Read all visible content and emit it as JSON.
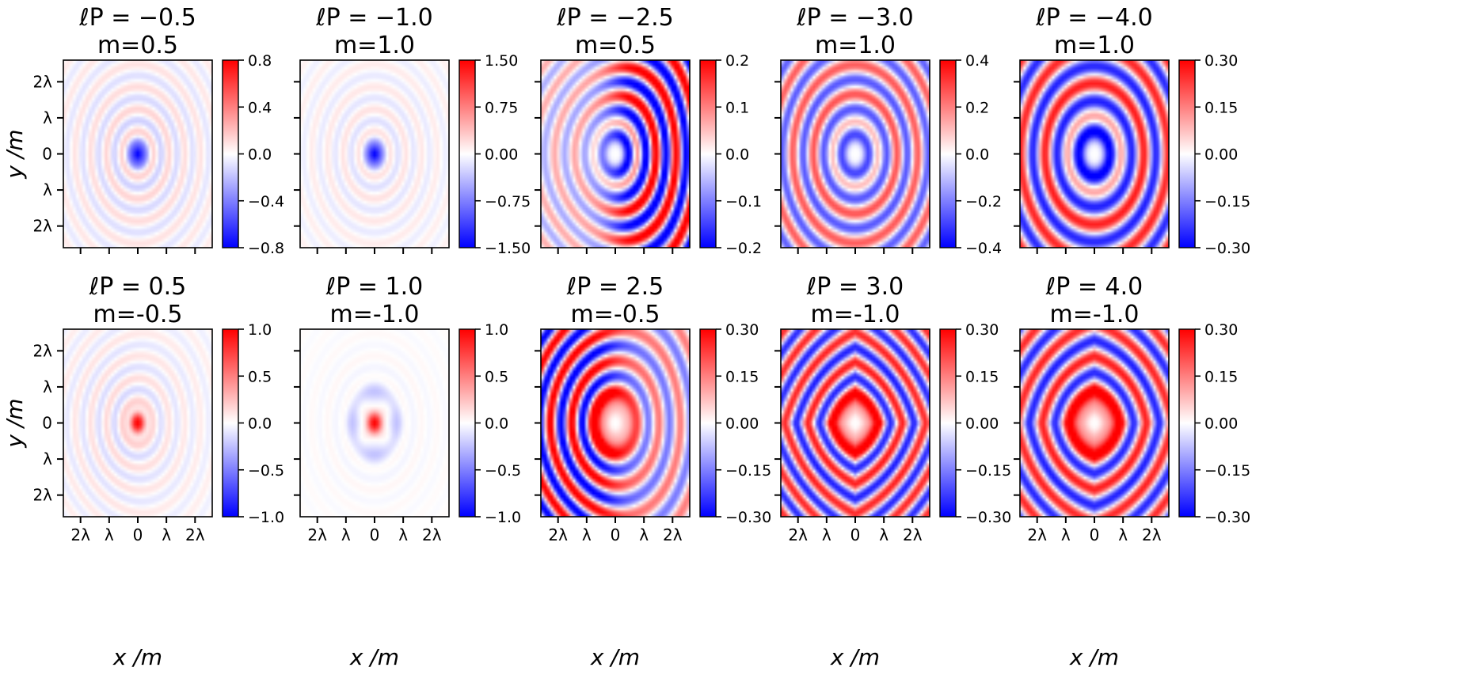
{
  "chart_data": [
    {
      "type": "heatmap",
      "title_line1": "ℓP = −0.5",
      "title_line2": "m=0.5",
      "colorbar_ticks": [
        "0.8",
        "0.4",
        "0.0",
        "−0.4",
        "−0.8"
      ],
      "vmin": -0.8,
      "vmax": 0.8,
      "pattern": "concentric_rings",
      "center_value": -0.8,
      "ring_amplitude": 0.2,
      "ring_period_lambda": 0.55,
      "aniso": 1.0,
      "asym": 0.0,
      "lobes": 0,
      "hole": 0
    },
    {
      "type": "heatmap",
      "title_line1": "ℓP = −1.0",
      "title_line2": "m=1.0",
      "colorbar_ticks": [
        "1.50",
        "0.75",
        "0.00",
        "−0.75",
        "−1.50"
      ],
      "vmin": -1.5,
      "vmax": 1.5,
      "pattern": "concentric_rings",
      "center_value": -1.5,
      "ring_amplitude": 0.25,
      "ring_period_lambda": 0.55,
      "aniso": 1.0,
      "asym": 0.0,
      "lobes": 0,
      "hole": 0
    },
    {
      "type": "heatmap",
      "title_line1": "ℓP = −2.5",
      "title_line2": "m=0.5",
      "colorbar_ticks": [
        "0.2",
        "0.1",
        "0.0",
        "−0.1",
        "−0.2"
      ],
      "vmin": -0.2,
      "vmax": 0.2,
      "pattern": "offset_rings",
      "center_value": -0.18,
      "ring_amplitude": 0.17,
      "ring_period_lambda": 0.7,
      "aniso": 1.0,
      "asym": 0.55,
      "lobes": 0,
      "hole": 1
    },
    {
      "type": "heatmap",
      "title_line1": "ℓP = −3.0",
      "title_line2": "m=1.0",
      "colorbar_ticks": [
        "0.4",
        "0.2",
        "0.0",
        "−0.2",
        "−0.4"
      ],
      "vmin": -0.4,
      "vmax": 0.4,
      "pattern": "concentric_rings",
      "center_value": -0.4,
      "ring_amplitude": 0.3,
      "ring_period_lambda": 0.72,
      "aniso": 1.0,
      "asym": 0.0,
      "lobes": 0,
      "hole": 1
    },
    {
      "type": "heatmap",
      "title_line1": "ℓP = −4.0",
      "title_line2": "m=1.0",
      "colorbar_ticks": [
        "0.30",
        "0.15",
        "0.00",
        "−0.15",
        "−0.30"
      ],
      "vmin": -0.3,
      "vmax": 0.3,
      "pattern": "concentric_rings",
      "center_value": -0.3,
      "ring_amplitude": 0.3,
      "ring_period_lambda": 0.85,
      "aniso": 1.0,
      "asym": 0.0,
      "lobes": 0,
      "hole": 1
    },
    {
      "type": "heatmap",
      "title_line1": "ℓP = 0.5",
      "title_line2": "m=-0.5",
      "colorbar_ticks": [
        "1.0",
        "0.5",
        "0.0",
        "−0.5",
        "−1.0"
      ],
      "vmin": -1.0,
      "vmax": 1.0,
      "pattern": "concentric_rings",
      "center_value": 1.0,
      "ring_amplitude": 0.2,
      "ring_period_lambda": 0.55,
      "aniso": 1.0,
      "asym": 0.3,
      "lobes": 0,
      "hole": 0
    },
    {
      "type": "heatmap",
      "title_line1": "ℓP = 1.0",
      "title_line2": "m=-1.0",
      "colorbar_ticks": [
        "1.0",
        "0.5",
        "0.0",
        "−0.5",
        "−1.0"
      ],
      "vmin": -1.0,
      "vmax": 1.0,
      "pattern": "four_lobe",
      "center_value": 1.0,
      "ring_amplitude": 0.1,
      "ring_period_lambda": 0.55,
      "aniso": 1.0,
      "asym": 0.0,
      "lobes": 4,
      "hole": 0
    },
    {
      "type": "heatmap",
      "title_line1": "ℓP = 2.5",
      "title_line2": "m=-0.5",
      "colorbar_ticks": [
        "0.30",
        "0.15",
        "0.00",
        "−0.15",
        "−0.30"
      ],
      "vmin": -0.3,
      "vmax": 0.3,
      "pattern": "offset_rings",
      "center_value": 0.3,
      "ring_amplitude": 0.28,
      "ring_period_lambda": 0.75,
      "aniso": 1.0,
      "asym": 0.35,
      "lobes": 0,
      "hole": 1
    },
    {
      "type": "heatmap",
      "title_line1": "ℓP = 3.0",
      "title_line2": "m=-1.0",
      "colorbar_ticks": [
        "0.30",
        "0.15",
        "0.00",
        "−0.15",
        "−0.30"
      ],
      "vmin": -0.3,
      "vmax": 0.3,
      "pattern": "diamond_rings",
      "center_value": 0.3,
      "ring_amplitude": 0.3,
      "ring_period_lambda": 0.75,
      "aniso": 0.45,
      "asym": 0.0,
      "lobes": 0,
      "hole": 1
    },
    {
      "type": "heatmap",
      "title_line1": "ℓP = 4.0",
      "title_line2": "m=-1.0",
      "colorbar_ticks": [
        "0.30",
        "0.15",
        "0.00",
        "−0.15",
        "−0.30"
      ],
      "vmin": -0.3,
      "vmax": 0.3,
      "pattern": "diamond_rings",
      "center_value": 0.3,
      "ring_amplitude": 0.3,
      "ring_period_lambda": 0.85,
      "aniso": 0.3,
      "asym": 0.0,
      "lobes": 0,
      "hole": 1
    }
  ],
  "shared_axes": {
    "xlabel": "x /m",
    "ylabel": "y /m",
    "x_ticks": [
      "2λ",
      "λ",
      "0",
      "λ",
      "2λ"
    ],
    "y_ticks": [
      "2λ",
      "λ",
      "0",
      "λ",
      "2λ"
    ],
    "x_tick_values": [
      -2,
      -1,
      0,
      1,
      2
    ],
    "y_tick_values": [
      2,
      1,
      0,
      -1,
      -2
    ],
    "range_lambda": 2.6,
    "colormap": "bwr",
    "colors": {
      "negative": "#0000ff",
      "zero": "#ffffff",
      "positive": "#ff0000"
    }
  }
}
